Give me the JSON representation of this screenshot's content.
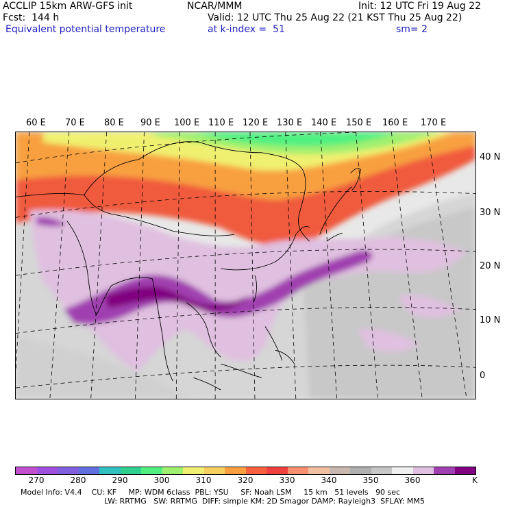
{
  "header": {
    "model": "ACCLIP 15km ARW-GFS init",
    "org": "NCAR/MMM",
    "init": "Init: 12 UTC Fri 19 Aug 22",
    "fcst": "Fcst:  144 h",
    "valid": "Valid: 12 UTC Thu 25 Aug 22 (21 KST Thu 25 Aug 22)",
    "field": "Equivalent potential temperature",
    "level": "at k-index =  51",
    "smooth": "sm= 2"
  },
  "map": {
    "lon_labels": [
      "60 E",
      "70 E",
      "80 E",
      "90 E",
      "100 E",
      "110 E",
      "120 E",
      "130 E",
      "140 E",
      "150 E",
      "160 E",
      "170 E"
    ],
    "lat_labels": [
      "40 N",
      "30 N",
      "20 N",
      "10 N",
      "0"
    ]
  },
  "colorbar": {
    "colors": [
      "#c050d0",
      "#a050e0",
      "#8060e0",
      "#6070e0",
      "#30c0c0",
      "#30d090",
      "#50f080",
      "#a0f070",
      "#f0f070",
      "#f8d060",
      "#f8a040",
      "#f86040",
      "#f04040",
      "#f89070",
      "#f0c0a0",
      "#c8b8b0",
      "#b0b0b0",
      "#c8c8c8",
      "#f0f0f0",
      "#e0c0e0",
      "#a040b0",
      "#800080"
    ],
    "ticks": [
      "270",
      "280",
      "290",
      "300",
      "310",
      "320",
      "330",
      "340",
      "350",
      "360",
      "K"
    ]
  },
  "footer": {
    "line1": "Model Info: V4.4    CU: KF     MP: WDM 6class  PBL: YSU     SF: Noah LSM     15 km   51 levels   90 sec",
    "line2": "LW: RRTMG   SW: RRTMG  DIFF: simple KM: 2D Smagor DAMP: Rayleigh3  SFLAY: MM5"
  }
}
